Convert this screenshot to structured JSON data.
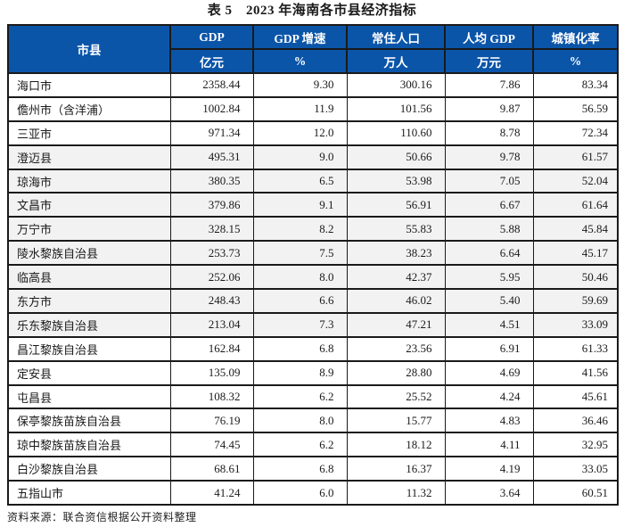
{
  "title": "表 5　2023 年海南各市县经济指标",
  "source_note": "资料来源：联合资信根据公开资料整理",
  "colors": {
    "header_bg": "#0B55A9",
    "header_text": "#FFFFFF",
    "border": "#1A1A1A",
    "shaded_row_bg": "#F2F2F2",
    "text": "#1A1A1A"
  },
  "table": {
    "columns": [
      {
        "label": "市县",
        "unit": ""
      },
      {
        "label": "GDP",
        "unit": "亿元"
      },
      {
        "label": "GDP 增速",
        "unit": "%"
      },
      {
        "label": "常住人口",
        "unit": "万人"
      },
      {
        "label": "人均 GDP",
        "unit": "万元"
      },
      {
        "label": "城镇化率",
        "unit": "%"
      }
    ],
    "rows": [
      {
        "region": "海口市",
        "gdp": "2358.44",
        "gdp_growth": "9.30",
        "population": "300.16",
        "gdp_per_capita": "7.86",
        "urbanization": "83.34",
        "shaded": false
      },
      {
        "region": "儋州市（含洋浦）",
        "gdp": "1002.84",
        "gdp_growth": "11.9",
        "population": "101.56",
        "gdp_per_capita": "9.87",
        "urbanization": "56.59",
        "shaded": false
      },
      {
        "region": "三亚市",
        "gdp": "971.34",
        "gdp_growth": "12.0",
        "population": "110.60",
        "gdp_per_capita": "8.78",
        "urbanization": "72.34",
        "shaded": false
      },
      {
        "region": "澄迈县",
        "gdp": "495.31",
        "gdp_growth": "9.0",
        "population": "50.66",
        "gdp_per_capita": "9.78",
        "urbanization": "61.57",
        "shaded": true
      },
      {
        "region": "琼海市",
        "gdp": "380.35",
        "gdp_growth": "6.5",
        "population": "53.98",
        "gdp_per_capita": "7.05",
        "urbanization": "52.04",
        "shaded": true
      },
      {
        "region": "文昌市",
        "gdp": "379.86",
        "gdp_growth": "9.1",
        "population": "56.91",
        "gdp_per_capita": "6.67",
        "urbanization": "61.64",
        "shaded": true
      },
      {
        "region": "万宁市",
        "gdp": "328.15",
        "gdp_growth": "8.2",
        "population": "55.83",
        "gdp_per_capita": "5.88",
        "urbanization": "45.84",
        "shaded": true
      },
      {
        "region": "陵水黎族自治县",
        "gdp": "253.73",
        "gdp_growth": "7.5",
        "population": "38.23",
        "gdp_per_capita": "6.64",
        "urbanization": "45.17",
        "shaded": true
      },
      {
        "region": "临高县",
        "gdp": "252.06",
        "gdp_growth": "8.0",
        "population": "42.37",
        "gdp_per_capita": "5.95",
        "urbanization": "50.46",
        "shaded": true
      },
      {
        "region": "东方市",
        "gdp": "248.43",
        "gdp_growth": "6.6",
        "population": "46.02",
        "gdp_per_capita": "5.40",
        "urbanization": "59.69",
        "shaded": true
      },
      {
        "region": "乐东黎族自治县",
        "gdp": "213.04",
        "gdp_growth": "7.3",
        "population": "47.21",
        "gdp_per_capita": "4.51",
        "urbanization": "33.09",
        "shaded": true
      },
      {
        "region": "昌江黎族自治县",
        "gdp": "162.84",
        "gdp_growth": "6.8",
        "population": "23.56",
        "gdp_per_capita": "6.91",
        "urbanization": "61.33",
        "shaded": false
      },
      {
        "region": "定安县",
        "gdp": "135.09",
        "gdp_growth": "8.9",
        "population": "28.80",
        "gdp_per_capita": "4.69",
        "urbanization": "41.56",
        "shaded": false
      },
      {
        "region": "屯昌县",
        "gdp": "108.32",
        "gdp_growth": "6.2",
        "population": "25.52",
        "gdp_per_capita": "4.24",
        "urbanization": "45.61",
        "shaded": false
      },
      {
        "region": "保亭黎族苗族自治县",
        "gdp": "76.19",
        "gdp_growth": "8.0",
        "population": "15.77",
        "gdp_per_capita": "4.83",
        "urbanization": "36.46",
        "shaded": false
      },
      {
        "region": "琼中黎族苗族自治县",
        "gdp": "74.45",
        "gdp_growth": "6.2",
        "population": "18.12",
        "gdp_per_capita": "4.11",
        "urbanization": "32.95",
        "shaded": false
      },
      {
        "region": "白沙黎族自治县",
        "gdp": "68.61",
        "gdp_growth": "6.8",
        "population": "16.37",
        "gdp_per_capita": "4.19",
        "urbanization": "33.05",
        "shaded": false
      },
      {
        "region": "五指山市",
        "gdp": "41.24",
        "gdp_growth": "6.0",
        "population": "11.32",
        "gdp_per_capita": "3.64",
        "urbanization": "60.51",
        "shaded": false
      }
    ]
  }
}
